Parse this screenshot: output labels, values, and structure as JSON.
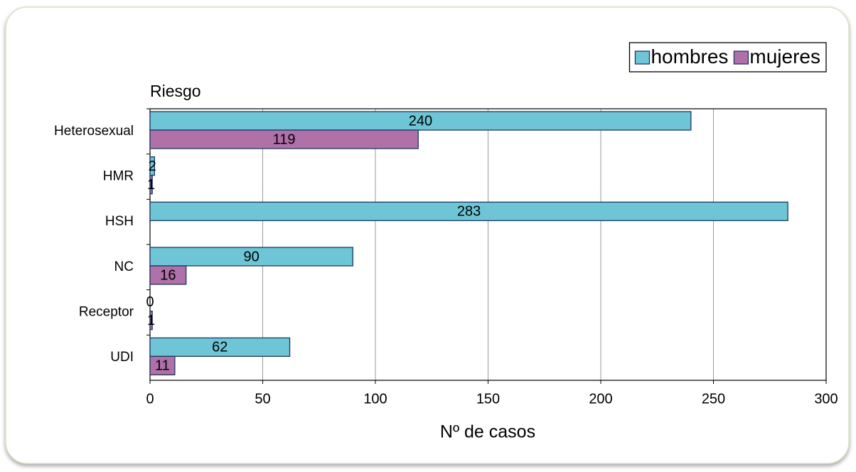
{
  "chart_data": {
    "type": "bar",
    "y_axis_label": "Riesgo",
    "x_axis_label": "Nº de casos",
    "categories": [
      "Heterosexual",
      "HMR",
      "HSH",
      "NC",
      "Receptor",
      "UDI"
    ],
    "series": [
      {
        "name": "hombres",
        "color": "#6dc5d6",
        "values": [
          240,
          2,
          283,
          90,
          0,
          62
        ]
      },
      {
        "name": "mujeres",
        "color": "#b070a8",
        "values": [
          119,
          1,
          null,
          16,
          1,
          11
        ]
      }
    ],
    "xlim": [
      0,
      300
    ],
    "xticks": [
      0,
      50,
      100,
      150,
      200,
      250,
      300
    ],
    "grid": true,
    "legend": "top-right"
  }
}
